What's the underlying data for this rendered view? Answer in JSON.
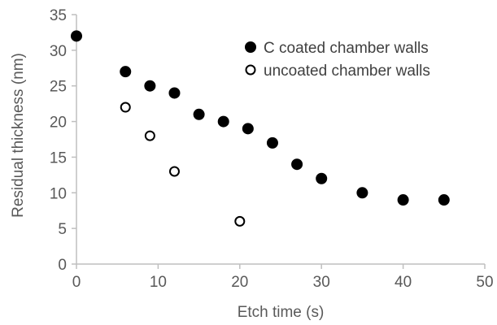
{
  "chart_data": {
    "type": "scatter",
    "title": "",
    "xlabel": "Etch time (s)",
    "ylabel": "Residual thickness (nm)",
    "xlim": [
      0,
      50
    ],
    "ylim": [
      0,
      35
    ],
    "xticks": [
      0,
      10,
      20,
      30,
      40,
      50
    ],
    "yticks": [
      0,
      5,
      10,
      15,
      20,
      25,
      30,
      35
    ],
    "grid": false,
    "legend_position": "top-right",
    "series": [
      {
        "name": "C coated chamber walls",
        "marker": "filled-circle",
        "color": "#000000",
        "points": [
          {
            "x": 0,
            "y": 32
          },
          {
            "x": 6,
            "y": 27
          },
          {
            "x": 9,
            "y": 25
          },
          {
            "x": 12,
            "y": 24
          },
          {
            "x": 15,
            "y": 21
          },
          {
            "x": 18,
            "y": 20
          },
          {
            "x": 21,
            "y": 19
          },
          {
            "x": 24,
            "y": 17
          },
          {
            "x": 27,
            "y": 14
          },
          {
            "x": 30,
            "y": 12
          },
          {
            "x": 35,
            "y": 10
          },
          {
            "x": 40,
            "y": 9
          },
          {
            "x": 45,
            "y": 9
          }
        ]
      },
      {
        "name": "uncoated chamber walls",
        "marker": "open-circle",
        "color": "#000000",
        "points": [
          {
            "x": 6,
            "y": 22
          },
          {
            "x": 9,
            "y": 18
          },
          {
            "x": 12,
            "y": 13
          },
          {
            "x": 20,
            "y": 6
          }
        ]
      }
    ]
  }
}
